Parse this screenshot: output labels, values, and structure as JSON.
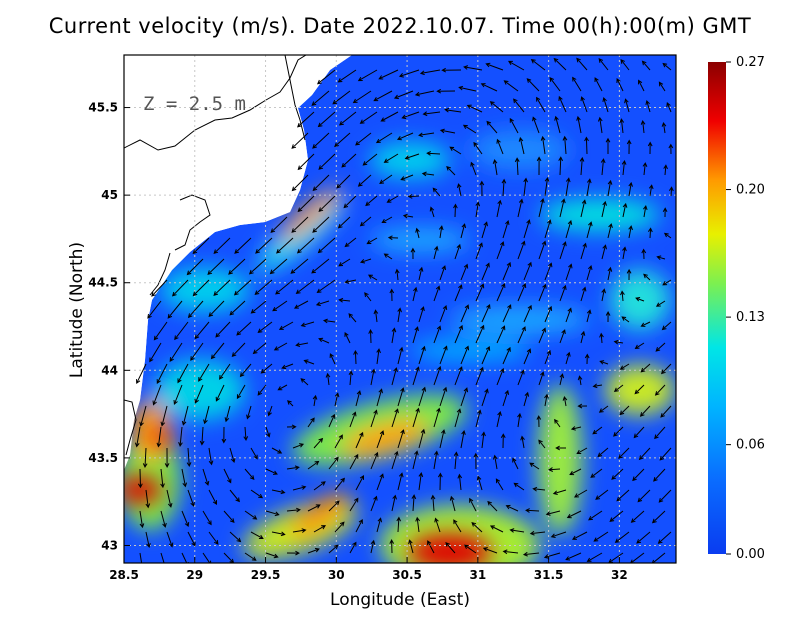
{
  "title": "Current velocity (m/s). Date 2022.10.07. Time 00(h):00(m) GMT",
  "depth_label": "Z  =  2.5  m",
  "x_axis": {
    "label": "Longitude (East)",
    "ticks": [
      "28.5",
      "29",
      "29.5",
      "30",
      "30.5",
      "31",
      "31.5",
      "32"
    ],
    "tick_values": [
      28.5,
      29,
      29.5,
      30,
      30.5,
      31,
      31.5,
      32
    ],
    "range": [
      28.5,
      32.4
    ]
  },
  "y_axis": {
    "label": "Latitude (North)",
    "ticks": [
      "43",
      "43.5",
      "44",
      "44.5",
      "45",
      "45.5"
    ],
    "tick_values": [
      43,
      43.5,
      44,
      44.5,
      45,
      45.5
    ],
    "range": [
      42.9,
      45.8
    ]
  },
  "colorbar": {
    "labels": [
      "0.27",
      "0.20",
      "0.13",
      "0.06",
      "0.00"
    ],
    "values": [
      0.27,
      0.2,
      0.13,
      0.06,
      0.0
    ],
    "colors": [
      "#8b0000",
      "#e00000",
      "#ff7a00",
      "#ffd700",
      "#9aef3a",
      "#00e0e0",
      "#0a8cff",
      "#0a3cf0"
    ]
  },
  "map": {
    "water_color": "#1450ff",
    "grid": true,
    "speed_features": [
      {
        "lon": 28.6,
        "lat": 43.23,
        "speed": 0.27
      },
      {
        "lon": 28.7,
        "lat": 43.55,
        "speed": 0.2
      },
      {
        "lon": 29.75,
        "lat": 44.8,
        "speed": 0.19
      },
      {
        "lon": 30.85,
        "lat": 42.95,
        "speed": 0.26
      },
      {
        "lon": 30.35,
        "lat": 43.55,
        "speed": 0.19
      },
      {
        "lon": 29.9,
        "lat": 43.05,
        "speed": 0.2
      },
      {
        "lon": 31.6,
        "lat": 43.4,
        "speed": 0.14
      },
      {
        "lon": 32.1,
        "lat": 43.8,
        "speed": 0.15
      }
    ]
  }
}
